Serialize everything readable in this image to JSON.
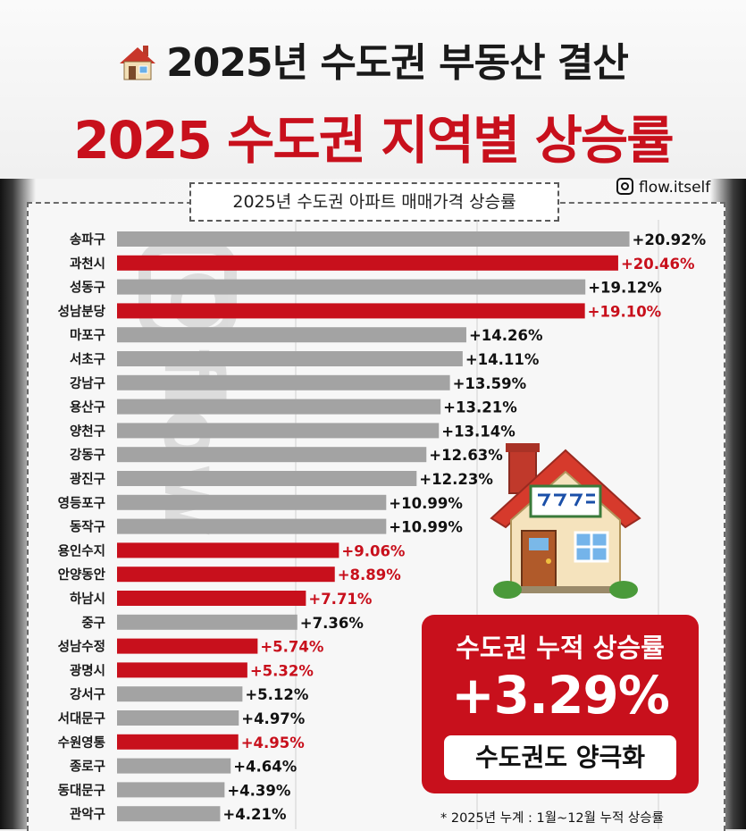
{
  "header": {
    "title": "2025년 수도권 부동산 결산",
    "headline": "2025 수도권 지역별 상승률",
    "handle": "flow.itself"
  },
  "colors": {
    "highlight": "#c8101c",
    "bar_default": "#a3a3a3",
    "text": "#1a1a1a"
  },
  "chart_data": {
    "type": "bar",
    "orientation": "horizontal",
    "title": "2025년 수도권 아파트 매매가격 상승률",
    "unit": "%",
    "xlim": [
      0,
      24
    ],
    "grid": true,
    "categories": [
      "송파구",
      "과천시",
      "성동구",
      "성남분당",
      "마포구",
      "서초구",
      "강남구",
      "용산구",
      "양천구",
      "강동구",
      "광진구",
      "영등포구",
      "동작구",
      "용인수지",
      "안양동안",
      "하남시",
      "중구",
      "성남수정",
      "광명시",
      "강서구",
      "서대문구",
      "수원영통",
      "종로구",
      "동대문구",
      "관악구"
    ],
    "values": [
      20.92,
      20.46,
      19.12,
      19.1,
      14.26,
      14.11,
      13.59,
      13.21,
      13.14,
      12.63,
      12.23,
      10.99,
      10.99,
      9.06,
      8.89,
      7.71,
      7.36,
      5.74,
      5.32,
      5.12,
      4.97,
      4.95,
      4.64,
      4.39,
      4.21
    ],
    "labels": [
      "+20.92%",
      "+20.46%",
      "+19.12%",
      "+19.10%",
      "+14.26%",
      "+14.11%",
      "+13.59%",
      "+13.21%",
      "+13.14%",
      "+12.63%",
      "+12.23%",
      "+10.99%",
      "+10.99%",
      "+9.06%",
      "+8.89%",
      "+7.71%",
      "+7.36%",
      "+5.74%",
      "+5.32%",
      "+5.12%",
      "+4.97%",
      "+4.95%",
      "+4.64%",
      "+4.39%",
      "+4.21%"
    ],
    "highlighted": [
      false,
      true,
      false,
      true,
      false,
      false,
      false,
      false,
      false,
      false,
      false,
      false,
      false,
      true,
      true,
      true,
      false,
      true,
      true,
      false,
      false,
      true,
      false,
      false,
      false
    ]
  },
  "summary": {
    "label": "수도권 누적 상승률",
    "value": "+3.29%",
    "note": "수도권도 양극화"
  },
  "footnote": "* 2025년 누계 :  1월~12월 누적 상승률",
  "icons": {
    "house": "house-icon",
    "instagram": "instagram-icon",
    "watermark": "instagram-watermark"
  }
}
